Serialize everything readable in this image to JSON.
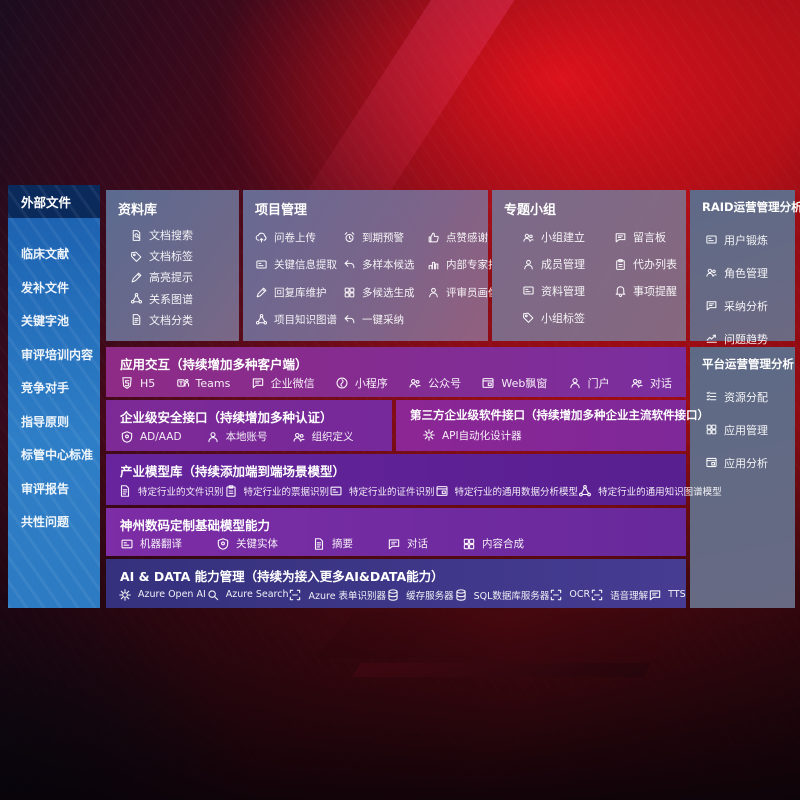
{
  "colors": {
    "background_red": "#a50f16",
    "sidebar_blue": "#2e7ec7",
    "sidebar_header_navy": "#0a2a5c",
    "panel_slate": "#67688b",
    "band_magenta": "#8c2b8f",
    "band_violet": "#67249c",
    "band_indigo": "#3b3787"
  },
  "sidebar": {
    "title": "外部文件",
    "items": [
      "临床文献",
      "发补文件",
      "关键字池",
      "审评培训内容",
      "竞争对手",
      "指导原则",
      "标管中心标准",
      "审评报告",
      "共性问题"
    ]
  },
  "panels": {
    "library": {
      "title": "资料库",
      "items": [
        {
          "icon": "doc-search-icon",
          "label": "文档搜索"
        },
        {
          "icon": "tag-icon",
          "label": "文档标签"
        },
        {
          "icon": "highlight-pen-icon",
          "label": "高亮提示"
        },
        {
          "icon": "relation-graph-icon",
          "label": "关系图谱"
        },
        {
          "icon": "doc-classify-icon",
          "label": "文档分类"
        }
      ]
    },
    "project": {
      "title": "项目管理",
      "items": [
        {
          "icon": "cloud-upload-icon",
          "label": "问卷上传"
        },
        {
          "icon": "alarm-icon",
          "label": "到期预警"
        },
        {
          "icon": "thumbs-up-icon",
          "label": "点赞感谢"
        },
        {
          "icon": "info-extract-icon",
          "label": "关键信息提取"
        },
        {
          "icon": "multi-sample-icon",
          "label": "多样本候选"
        },
        {
          "icon": "expert-ranking-icon",
          "label": "内部专家排名"
        },
        {
          "icon": "reply-maintain-icon",
          "label": "回复库维护"
        },
        {
          "icon": "multi-generate-icon",
          "label": "多候选生成"
        },
        {
          "icon": "reviewer-profile-icon",
          "label": "评审员画像"
        },
        {
          "icon": "project-knowledge-graph-icon",
          "label": "项目知识图谱"
        },
        {
          "icon": "one-click-adopt-icon",
          "label": "一键采纳"
        }
      ]
    },
    "group": {
      "title": "专题小组",
      "items": [
        {
          "icon": "group-create-icon",
          "label": "小组建立"
        },
        {
          "icon": "message-board-icon",
          "label": "留言板"
        },
        {
          "icon": "member-manage-icon",
          "label": "成员管理"
        },
        {
          "icon": "todo-list-icon",
          "label": "代办列表"
        },
        {
          "icon": "material-manage-icon",
          "label": "资料管理"
        },
        {
          "icon": "reminder-bell-icon",
          "label": "事项提醒"
        },
        {
          "icon": "group-tag-icon",
          "label": "小组标签"
        }
      ]
    },
    "raid": {
      "title": "RAID运营管理分析",
      "items": [
        {
          "icon": "user-card-icon",
          "label": "用户锻炼"
        },
        {
          "icon": "role-manage-icon",
          "label": "角色管理"
        },
        {
          "icon": "adoption-analysis-icon",
          "label": "采纳分析"
        },
        {
          "icon": "issue-trend-icon",
          "label": "问题趋势"
        }
      ]
    },
    "platform": {
      "title": "平台运营管理分析",
      "items": [
        {
          "icon": "resource-allocation-icon",
          "label": "资源分配"
        },
        {
          "icon": "app-manage-icon",
          "label": "应用管理"
        },
        {
          "icon": "app-analysis-icon",
          "label": "应用分析"
        }
      ]
    }
  },
  "bands": {
    "interaction": {
      "title": "应用交互（持续增加多种客户端）",
      "items": [
        {
          "icon": "h5-icon",
          "label": "H5"
        },
        {
          "icon": "teams-icon",
          "label": "Teams"
        },
        {
          "icon": "wechat-work-icon",
          "label": "企业微信"
        },
        {
          "icon": "miniprogram-icon",
          "label": "小程序"
        },
        {
          "icon": "official-account-icon",
          "label": "公众号"
        },
        {
          "icon": "web-popup-icon",
          "label": "Web飘窗"
        },
        {
          "icon": "portal-icon",
          "label": "门户"
        },
        {
          "icon": "dialog-icon",
          "label": "对话"
        }
      ]
    },
    "security": {
      "title": "企业级安全接口（持续增加多种认证）",
      "items": [
        {
          "icon": "ad-shield-icon",
          "label": "AD/AAD"
        },
        {
          "icon": "local-account-icon",
          "label": "本地账号"
        },
        {
          "icon": "org-define-icon",
          "label": "组织定义"
        }
      ]
    },
    "third_party": {
      "title": "第三方企业级软件接口（持续增加多种企业主流软件接口）",
      "items": [
        {
          "icon": "api-designer-icon",
          "label": "API自动化设计器"
        }
      ]
    },
    "industry_models": {
      "title": "产业模型库（持续添加端到端场景模型）",
      "items": [
        {
          "icon": "file-recognition-icon",
          "label": "特定行业的文件识别"
        },
        {
          "icon": "invoice-recognition-icon",
          "label": "特定行业的票据识别"
        },
        {
          "icon": "certificate-recognition-icon",
          "label": "特定行业的证件识别"
        },
        {
          "icon": "data-analysis-model-icon",
          "label": "特定行业的通用数据分析模型"
        },
        {
          "icon": "knowledge-graph-model-icon",
          "label": "特定行业的通用知识图谱模型"
        }
      ]
    },
    "custom_models": {
      "title": "神州数码定制基础模型能力",
      "items": [
        {
          "icon": "machine-translation-icon",
          "label": "机器翻译"
        },
        {
          "icon": "key-entity-icon",
          "label": "关键实体"
        },
        {
          "icon": "summary-icon",
          "label": "摘要"
        },
        {
          "icon": "dialogue-icon",
          "label": "对话"
        },
        {
          "icon": "content-compose-icon",
          "label": "内容合成"
        }
      ]
    },
    "ai_data": {
      "title": "AI & DATA 能力管理（持续为接入更多AI&DATA能力）",
      "items": [
        {
          "icon": "azure-openai-icon",
          "label": "Azure Open AI"
        },
        {
          "icon": "azure-search-icon",
          "label": "Azure Search"
        },
        {
          "icon": "form-recognizer-icon",
          "label": "Azure 表单识别器"
        },
        {
          "icon": "cache-server-icon",
          "label": "缓存服务器"
        },
        {
          "icon": "sql-server-icon",
          "label": "SQL数据库服务器"
        },
        {
          "icon": "ocr-icon",
          "label": "OCR"
        },
        {
          "icon": "speech-understanding-icon",
          "label": "语音理解"
        },
        {
          "icon": "tts-icon",
          "label": "TTS"
        }
      ]
    }
  }
}
